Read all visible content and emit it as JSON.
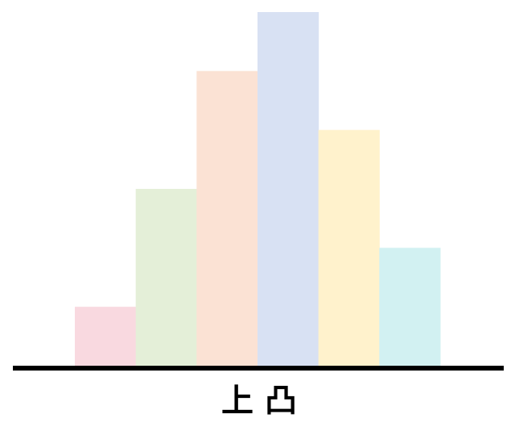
{
  "chart_data": {
    "type": "bar",
    "caption": "上 凸",
    "title": "",
    "xlabel": "",
    "ylabel": "",
    "values": [
      1,
      3,
      5,
      6,
      4,
      2
    ],
    "ylim": [
      0,
      6
    ],
    "grid": false,
    "legend": "none",
    "colors": [
      "#f9d9e0",
      "#e4efd8",
      "#fbe2d4",
      "#d8e1f3",
      "#fff2cc",
      "#d2f1f2"
    ],
    "axis_color": "#000000"
  }
}
